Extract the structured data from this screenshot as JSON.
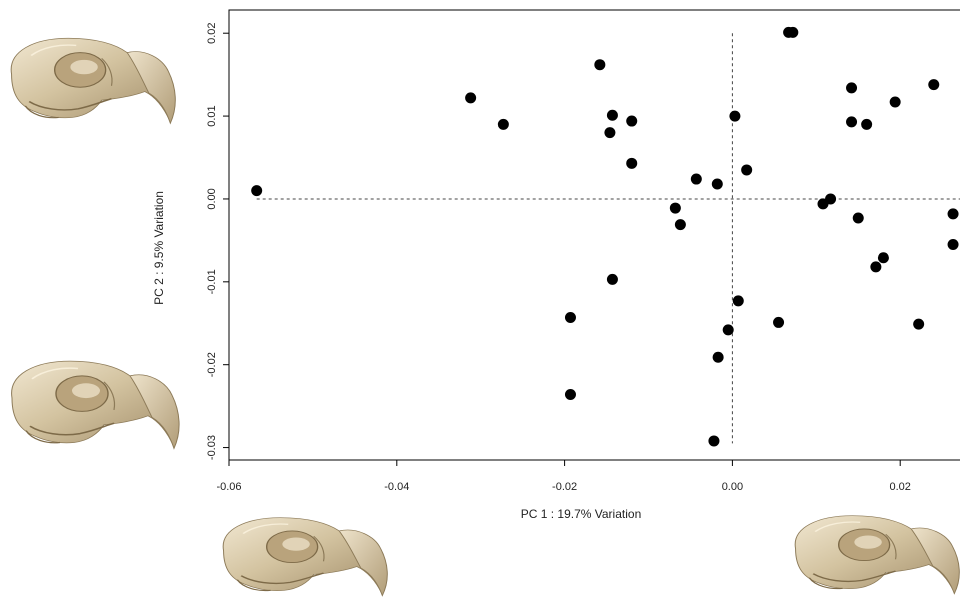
{
  "chart_data": {
    "type": "scatter",
    "xlabel": "PC 1 : 19.7% Variation",
    "ylabel": "PC 2 : 9.5% Variation",
    "xlim": [
      -0.06,
      0.0282
    ],
    "ylim": [
      -0.0315,
      0.0228
    ],
    "xticks": [
      {
        "value": -0.06,
        "label": "-0.06"
      },
      {
        "value": -0.04,
        "label": "-0.04"
      },
      {
        "value": -0.02,
        "label": "-0.02"
      },
      {
        "value": 0.0,
        "label": "0.00"
      },
      {
        "value": 0.02,
        "label": "0.02"
      }
    ],
    "yticks": [
      {
        "value": -0.03,
        "label": "-0.03"
      },
      {
        "value": -0.02,
        "label": "-0.02"
      },
      {
        "value": -0.01,
        "label": "-0.01"
      },
      {
        "value": 0.0,
        "label": "0.00"
      },
      {
        "value": 0.01,
        "label": "0.01"
      },
      {
        "value": 0.02,
        "label": "0.02"
      }
    ],
    "reference_lines": {
      "x": 0.0,
      "y": 0.0,
      "style": "dashed"
    },
    "grid": false,
    "marker_color": "#000000",
    "points": [
      {
        "x": -0.0567,
        "y": 0.001
      },
      {
        "x": -0.0312,
        "y": 0.0122
      },
      {
        "x": -0.0273,
        "y": 0.009
      },
      {
        "x": -0.0158,
        "y": 0.0162
      },
      {
        "x": -0.0143,
        "y": 0.0101
      },
      {
        "x": -0.0146,
        "y": 0.008
      },
      {
        "x": -0.012,
        "y": 0.0094
      },
      {
        "x": -0.012,
        "y": 0.0043
      },
      {
        "x": -0.0143,
        "y": -0.0097
      },
      {
        "x": -0.0193,
        "y": -0.0143
      },
      {
        "x": -0.0193,
        "y": -0.0236
      },
      {
        "x": -0.0043,
        "y": 0.0024
      },
      {
        "x": -0.0018,
        "y": 0.0018
      },
      {
        "x": -0.0068,
        "y": -0.0011
      },
      {
        "x": -0.0062,
        "y": -0.0031
      },
      {
        "x": 0.0003,
        "y": 0.01
      },
      {
        "x": 0.0017,
        "y": 0.0035
      },
      {
        "x": 0.0007,
        "y": -0.0123
      },
      {
        "x": -0.0005,
        "y": -0.0158
      },
      {
        "x": -0.0017,
        "y": -0.0191
      },
      {
        "x": -0.0022,
        "y": -0.0292
      },
      {
        "x": 0.0055,
        "y": -0.0149
      },
      {
        "x": 0.0067,
        "y": 0.0201
      },
      {
        "x": 0.0072,
        "y": 0.0201
      },
      {
        "x": 0.0142,
        "y": 0.0134
      },
      {
        "x": 0.0142,
        "y": 0.0093
      },
      {
        "x": 0.016,
        "y": 0.009
      },
      {
        "x": 0.0194,
        "y": 0.0117
      },
      {
        "x": 0.024,
        "y": 0.0138
      },
      {
        "x": 0.0108,
        "y": -0.0006
      },
      {
        "x": 0.0117,
        "y": 0.0
      },
      {
        "x": 0.015,
        "y": -0.0023
      },
      {
        "x": 0.018,
        "y": -0.0071
      },
      {
        "x": 0.0171,
        "y": -0.0082
      },
      {
        "x": 0.0222,
        "y": -0.0151
      },
      {
        "x": 0.0263,
        "y": -0.0018
      },
      {
        "x": 0.0263,
        "y": -0.0055
      }
    ]
  },
  "figure_images": [
    {
      "name": "skull-image-top-left",
      "depicts": "bird skull rendering"
    },
    {
      "name": "skull-image-mid-left",
      "depicts": "bird skull rendering"
    },
    {
      "name": "skull-image-bottom-left",
      "depicts": "bird skull rendering"
    },
    {
      "name": "skull-image-bottom-right",
      "depicts": "bird skull rendering"
    }
  ]
}
